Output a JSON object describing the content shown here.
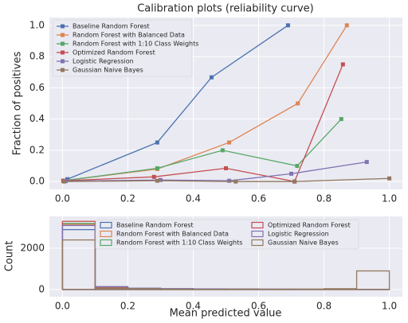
{
  "chart_data": [
    {
      "type": "line",
      "title": "Calibration plots (reliability curve)",
      "ylabel": "Fraction of positives",
      "xlim": [
        -0.04,
        1.04
      ],
      "ylim": [
        -0.05,
        1.05
      ],
      "xticks": [
        {
          "value": 0,
          "label": "0.0"
        },
        {
          "value": 0.2,
          "label": "0.2"
        },
        {
          "value": 0.4,
          "label": "0.4"
        },
        {
          "value": 0.6,
          "label": "0.6"
        },
        {
          "value": 0.8,
          "label": "0.8"
        },
        {
          "value": 1,
          "label": "1.0"
        }
      ],
      "yticks": [
        {
          "value": 0,
          "label": "0.0"
        },
        {
          "value": 0.2,
          "label": "0.2"
        },
        {
          "value": 0.4,
          "label": "0.4"
        },
        {
          "value": 0.6,
          "label": "0.6"
        },
        {
          "value": 0.8,
          "label": "0.8"
        },
        {
          "value": 1,
          "label": "1.0"
        }
      ],
      "grid": true,
      "legend": "upper left",
      "series": [
        {
          "name": "Baseline Random Forest",
          "color": "#4c72b0",
          "x": [
            0.015,
            0.29,
            0.456,
            0.69
          ],
          "values": [
            0.015,
            0.25,
            0.667,
            1.0
          ]
        },
        {
          "name": "Random Forest with Balanced Data",
          "color": "#dd8452",
          "x": [
            0.002,
            0.29,
            0.51,
            0.72,
            0.87
          ],
          "values": [
            0.005,
            0.08,
            0.25,
            0.5,
            1.0
          ]
        },
        {
          "name": "Random Forest with 1:10 Class Weights",
          "color": "#55a868",
          "x": [
            0.003,
            0.29,
            0.49,
            0.718,
            0.853
          ],
          "values": [
            0.005,
            0.085,
            0.2,
            0.1,
            0.4
          ]
        },
        {
          "name": "Optimized Random Forest",
          "color": "#c44e52",
          "x": [
            0.003,
            0.28,
            0.5,
            0.71,
            0.858
          ],
          "values": [
            0.005,
            0.03,
            0.085,
            0.0,
            0.75
          ]
        },
        {
          "name": "Logistic Regression",
          "color": "#8172b3",
          "x": [
            0.01,
            0.3,
            0.51,
            0.7,
            0.931
          ],
          "values": [
            0.003,
            0.01,
            0.005,
            0.05,
            0.125
          ]
        },
        {
          "name": "Gaussian Naive Bayes",
          "color": "#937860",
          "x": [
            0.005,
            0.29,
            0.53,
            0.71,
            1.0
          ],
          "values": [
            0.0,
            0.005,
            0.0,
            0.0,
            0.02
          ]
        }
      ]
    },
    {
      "type": "histogram",
      "xlabel": "Mean predicted value",
      "ylabel": "Count",
      "xlim": [
        -0.04,
        1.04
      ],
      "ylim": [
        -350,
        3540
      ],
      "xticks": [
        {
          "value": 0,
          "label": "0.0"
        },
        {
          "value": 0.2,
          "label": "0.2"
        },
        {
          "value": 0.4,
          "label": "0.4"
        },
        {
          "value": 0.6,
          "label": "0.6"
        },
        {
          "value": 0.8,
          "label": "0.8"
        },
        {
          "value": 1,
          "label": "1.0"
        }
      ],
      "yticks": [
        0,
        2000
      ],
      "grid": true,
      "legend": "upper center",
      "bins": [
        0,
        0.1,
        0.2,
        0.3,
        0.4,
        0.5,
        0.6,
        0.7,
        0.8,
        0.9,
        1.0
      ],
      "series": [
        {
          "name": "Baseline Random Forest",
          "color": "#4c72b0",
          "values": [
            2900,
            130,
            60,
            40,
            30,
            25,
            20,
            15,
            10,
            10
          ]
        },
        {
          "name": "Random Forest with Balanced Data",
          "color": "#dd8452",
          "values": [
            3150,
            100,
            50,
            30,
            20,
            20,
            15,
            10,
            10,
            5
          ]
        },
        {
          "name": "Random Forest with 1:10 Class Weights",
          "color": "#55a868",
          "values": [
            3200,
            110,
            55,
            30,
            20,
            15,
            10,
            10,
            5,
            5
          ]
        },
        {
          "name": "Optimized Random Forest",
          "color": "#c44e52",
          "values": [
            3300,
            120,
            50,
            30,
            20,
            15,
            10,
            10,
            5,
            5
          ]
        },
        {
          "name": "Logistic Regression",
          "color": "#8172b3",
          "values": [
            3100,
            140,
            60,
            40,
            30,
            20,
            15,
            10,
            5,
            5
          ]
        },
        {
          "name": "Gaussian Naive Bayes",
          "color": "#937860",
          "values": [
            2400,
            60,
            40,
            20,
            10,
            10,
            10,
            20,
            40,
            900
          ]
        }
      ]
    }
  ]
}
